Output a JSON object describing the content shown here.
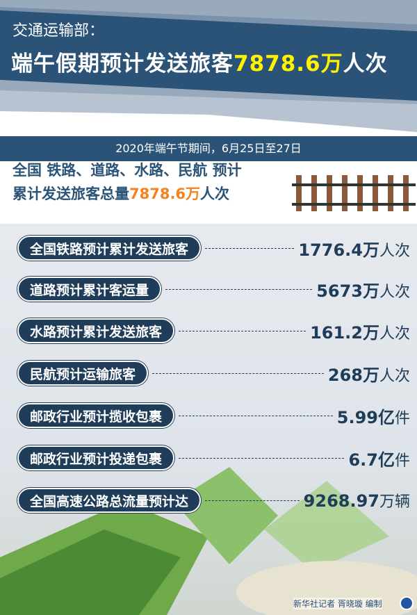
{
  "header": {
    "source": "交通运输部：",
    "title_prefix": "端午假期预计发送旅客",
    "title_number": "7878.6万",
    "title_suffix": "人次"
  },
  "period": "2020年端午节期间，6月25日至27日",
  "summary": {
    "line1": "全国 铁路、道路、水路、民航 预计",
    "line2_prefix": "累计发送旅客总量",
    "line2_number": "7878.6万",
    "line2_suffix": "人次"
  },
  "items": [
    {
      "label": "全国铁路预计累计发送旅客",
      "value": "1776.4万",
      "unit": "人次"
    },
    {
      "label": "道路预计累计客运量",
      "value": "5673万",
      "unit": "人次"
    },
    {
      "label": "水路预计累计发送旅客",
      "value": "161.2万",
      "unit": "人次"
    },
    {
      "label": "民航预计运输旅客",
      "value": "268万",
      "unit": "人次"
    },
    {
      "label": "邮政行业预计揽收包裹",
      "value": "5.99亿",
      "unit": "件"
    },
    {
      "label": "邮政行业预计投递包裹",
      "value": "6.7亿",
      "unit": "件"
    },
    {
      "label": "全国高速公路总流量预计达",
      "value": "9268.97",
      "unit": "万辆"
    }
  ],
  "credit": "新华社记者 胥晓璇 编制",
  "colors": {
    "navy": "#1f3d58",
    "header_blue": "#2b5378",
    "highlight_yellow": "#fff200",
    "highlight_orange": "#f58220"
  }
}
